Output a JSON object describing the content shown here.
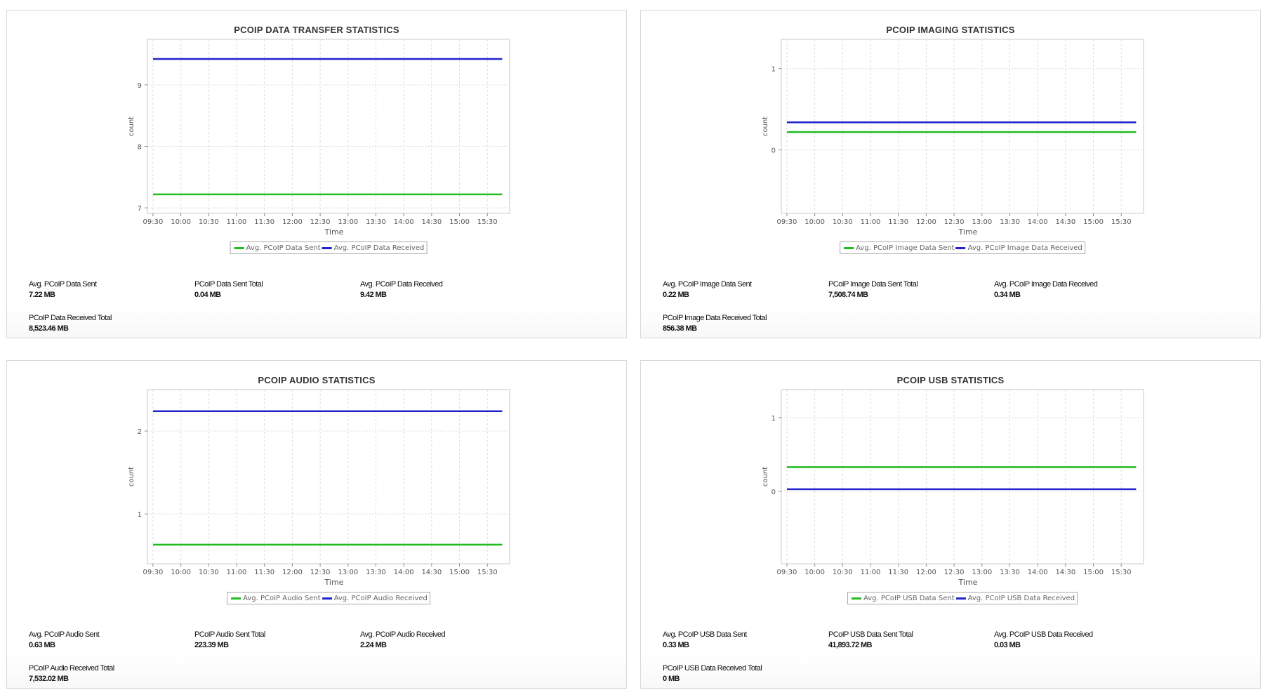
{
  "panels": [
    {
      "title": "PCOIP DATA TRANSFER STATISTICS",
      "stats": [
        {
          "label": "Avg. PCoIP Data Sent",
          "value": "7.22 MB"
        },
        {
          "label": "PCoIP Data Sent Total",
          "value": "0.04 MB"
        },
        {
          "label": "Avg. PCoIP Data Received",
          "value": "9.42 MB"
        },
        {
          "label": "PCoIP Data Received Total",
          "value": "8,523.46 MB"
        }
      ]
    },
    {
      "title": "PCOIP IMAGING STATISTICS",
      "stats": [
        {
          "label": "Avg. PCoIP Image Data Sent",
          "value": "0.22 MB"
        },
        {
          "label": "PCoIP Image Data Sent Total",
          "value": "7,508.74 MB"
        },
        {
          "label": "Avg. PCoIP Image Data Received",
          "value": "0.34 MB"
        },
        {
          "label": "PCoIP Image Data Received Total",
          "value": "856.38 MB"
        }
      ]
    },
    {
      "title": "PCOIP AUDIO STATISTICS",
      "stats": [
        {
          "label": "Avg. PCoIP Audio Sent",
          "value": "0.63 MB"
        },
        {
          "label": "PCoIP Audio Sent Total",
          "value": "223.39 MB"
        },
        {
          "label": "Avg. PCoIP Audio Received",
          "value": "2.24 MB"
        },
        {
          "label": "PCoIP Audio Received Total",
          "value": "7,532.02 MB"
        }
      ]
    },
    {
      "title": "PCOIP USB STATISTICS",
      "stats": [
        {
          "label": "Avg. PCoIP USB Data Sent",
          "value": "0.33 MB"
        },
        {
          "label": "PCoIP USB Data Sent Total",
          "value": "41,893.72 MB"
        },
        {
          "label": "Avg. PCoIP USB Data Received",
          "value": "0.03 MB"
        },
        {
          "label": "PCoIP USB Data Received Total",
          "value": "0 MB"
        }
      ]
    }
  ],
  "chart_data": [
    {
      "type": "line",
      "xlabel": "Time",
      "ylabel": "count",
      "x_ticks": [
        "09:30",
        "10:00",
        "10:30",
        "11:00",
        "11:30",
        "12:00",
        "12:30",
        "13:00",
        "13:30",
        "14:00",
        "14:30",
        "15:00",
        "15:30"
      ],
      "xlim": [
        "09:24",
        "15:54"
      ],
      "x_span": [
        "09:30",
        "15:46"
      ],
      "ylim": [
        6.91,
        9.74
      ],
      "y_ticks": [
        7,
        8,
        9
      ],
      "grid": true,
      "legend": "bottom",
      "series": [
        {
          "name": "Avg. PCoIP Data Sent",
          "value": 7.22,
          "color": "#22bb22"
        },
        {
          "name": "Avg. PCoIP Data Received",
          "value": 9.42,
          "color": "#2222cc"
        }
      ]
    },
    {
      "type": "line",
      "xlabel": "Time",
      "ylabel": "count",
      "x_ticks": [
        "09:30",
        "10:00",
        "10:30",
        "11:00",
        "11:30",
        "12:00",
        "12:30",
        "13:00",
        "13:30",
        "14:00",
        "14:30",
        "15:00",
        "15:30"
      ],
      "xlim": [
        "09:24",
        "15:54"
      ],
      "x_span": [
        "09:30",
        "15:46"
      ],
      "ylim": [
        -0.78,
        1.36
      ],
      "y_ticks": [
        0,
        1
      ],
      "grid": true,
      "legend": "bottom",
      "series": [
        {
          "name": "Avg. PCoIP Image Data Sent",
          "value": 0.22,
          "color": "#22bb22"
        },
        {
          "name": "Avg. PCoIP Image Data Received",
          "value": 0.34,
          "color": "#2222cc"
        }
      ]
    },
    {
      "type": "line",
      "xlabel": "Time",
      "ylabel": "count",
      "x_ticks": [
        "09:30",
        "10:00",
        "10:30",
        "11:00",
        "11:30",
        "12:00",
        "12:30",
        "13:00",
        "13:30",
        "14:00",
        "14:30",
        "15:00",
        "15:30"
      ],
      "xlim": [
        "09:24",
        "15:54"
      ],
      "x_span": [
        "09:30",
        "15:46"
      ],
      "ylim": [
        0.4,
        2.5
      ],
      "y_ticks": [
        1,
        2
      ],
      "grid": true,
      "legend": "bottom",
      "series": [
        {
          "name": "Avg. PCoIP Audio Sent",
          "value": 0.63,
          "color": "#22bb22"
        },
        {
          "name": "Avg. PCoIP Audio Received",
          "value": 2.24,
          "color": "#2222cc"
        }
      ]
    },
    {
      "type": "line",
      "xlabel": "Time",
      "ylabel": "count",
      "x_ticks": [
        "09:30",
        "10:00",
        "10:30",
        "11:00",
        "11:30",
        "12:00",
        "12:30",
        "13:00",
        "13:30",
        "14:00",
        "14:30",
        "15:00",
        "15:30"
      ],
      "xlim": [
        "09:24",
        "15:54"
      ],
      "x_span": [
        "09:30",
        "15:46"
      ],
      "ylim": [
        -0.98,
        1.38
      ],
      "y_ticks": [
        0,
        1
      ],
      "grid": true,
      "legend": "bottom",
      "series": [
        {
          "name": "Avg. PCoIP USB Data Sent",
          "value": 0.33,
          "color": "#22bb22"
        },
        {
          "name": "Avg. PCoIP USB Data Received",
          "value": 0.03,
          "color": "#2222cc"
        }
      ]
    }
  ]
}
